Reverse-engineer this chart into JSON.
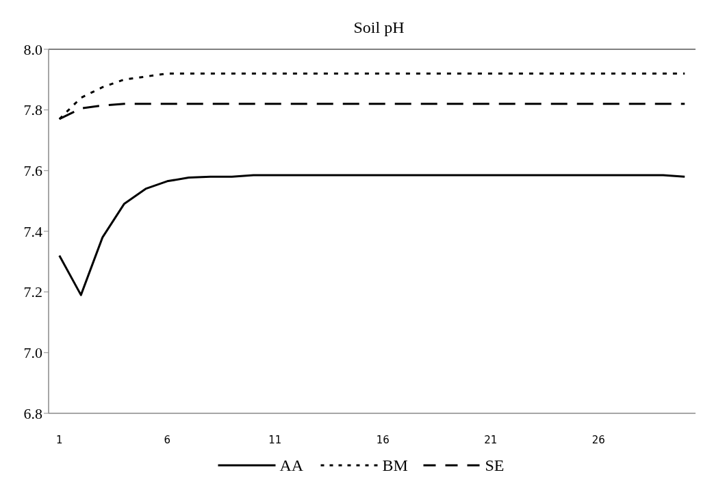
{
  "chart_data": {
    "type": "line",
    "title": "Soil pH",
    "categories": [
      "1",
      null,
      null,
      null,
      null,
      "6",
      null,
      null,
      null,
      null,
      "11",
      null,
      null,
      null,
      null,
      "16",
      null,
      null,
      null,
      null,
      "21",
      null,
      null,
      null,
      null,
      "26",
      null,
      null,
      null,
      null
    ],
    "series": [
      {
        "name": "AA",
        "color": "#000000",
        "line_style": "solid",
        "values": [
          7.32,
          7.19,
          7.38,
          7.49,
          7.54,
          7.565,
          7.577,
          7.58,
          7.58,
          7.585,
          7.585,
          7.585,
          7.585,
          7.585,
          7.585,
          7.585,
          7.585,
          7.585,
          7.585,
          7.585,
          7.585,
          7.585,
          7.585,
          7.585,
          7.585,
          7.585,
          7.585,
          7.585,
          7.585,
          7.58
        ]
      },
      {
        "name": "BM",
        "color": "#000000",
        "line_style": "dotted",
        "values": [
          7.77,
          7.84,
          7.875,
          7.9,
          7.91,
          7.92,
          7.92,
          7.92,
          7.92,
          7.92,
          7.92,
          7.92,
          7.92,
          7.92,
          7.92,
          7.92,
          7.92,
          7.92,
          7.92,
          7.92,
          7.92,
          7.92,
          7.92,
          7.92,
          7.92,
          7.92,
          7.92,
          7.92,
          7.92,
          7.92
        ]
      },
      {
        "name": "SE",
        "color": "#000000",
        "line_style": "dashed",
        "values": [
          7.77,
          7.805,
          7.815,
          7.82,
          7.82,
          7.82,
          7.82,
          7.82,
          7.82,
          7.82,
          7.82,
          7.82,
          7.82,
          7.82,
          7.82,
          7.82,
          7.82,
          7.82,
          7.82,
          7.82,
          7.82,
          7.82,
          7.82,
          7.82,
          7.82,
          7.82,
          7.82,
          7.82,
          7.82,
          7.82
        ]
      }
    ],
    "ylim": [
      6.8,
      8.0
    ],
    "yticks": [
      {
        "value": 6.8,
        "label": "6.8"
      },
      {
        "value": 7.0,
        "label": "7.0"
      },
      {
        "value": 7.2,
        "label": "7.2"
      },
      {
        "value": 7.4,
        "label": "7.4"
      },
      {
        "value": 7.6,
        "label": "7.6"
      },
      {
        "value": 7.8,
        "label": "7.8"
      },
      {
        "value": 8.0,
        "label": "8.0"
      }
    ],
    "grid": false,
    "legend": "bottom",
    "marker": "none"
  }
}
